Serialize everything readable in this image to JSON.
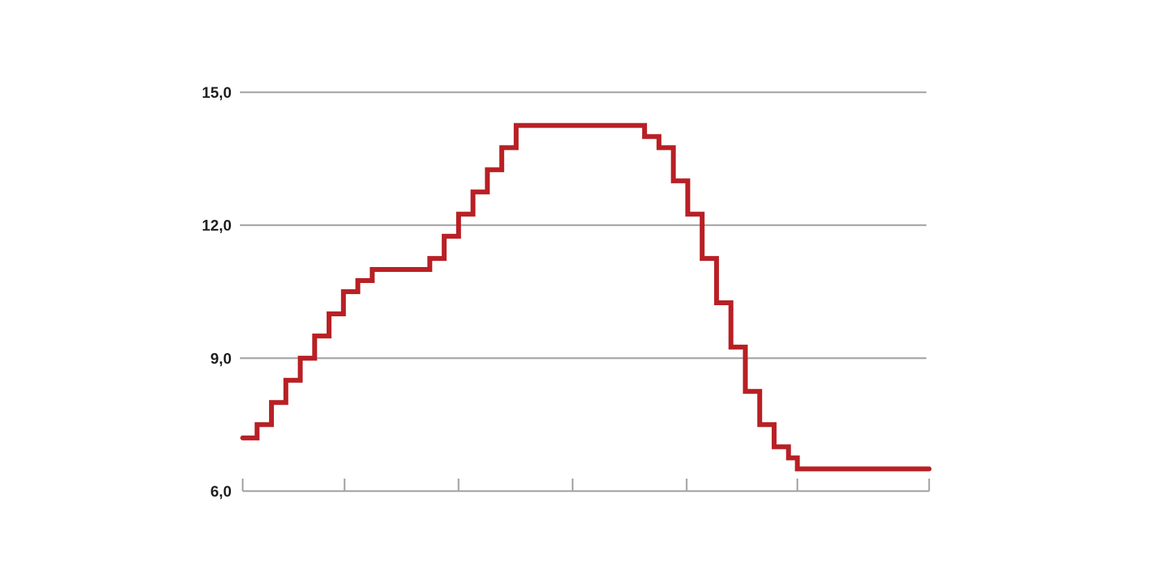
{
  "chart_data": {
    "type": "line",
    "step": true,
    "title": "",
    "xlabel": "",
    "ylabel": "",
    "ylim": [
      6,
      15
    ],
    "xlim": [
      0,
      62
    ],
    "yticks": [
      {
        "value": 6,
        "label": "6,0"
      },
      {
        "value": 9,
        "label": "9,0"
      },
      {
        "value": 12,
        "label": "12,0"
      },
      {
        "value": 15,
        "label": "15,0"
      }
    ],
    "xticks": [
      0,
      9.2,
      19.5,
      29.8,
      40.1,
      50.1,
      62
    ],
    "grid": true,
    "series": [
      {
        "color": "#b82025",
        "points": [
          [
            0,
            7.2
          ],
          [
            1.3,
            7.5
          ],
          [
            2.6,
            8.0
          ],
          [
            3.9,
            8.5
          ],
          [
            5.2,
            9.0
          ],
          [
            6.5,
            9.5
          ],
          [
            7.8,
            10.0
          ],
          [
            9.1,
            10.5
          ],
          [
            10.4,
            10.75
          ],
          [
            11.7,
            11.0
          ],
          [
            16.9,
            11.25
          ],
          [
            18.2,
            11.75
          ],
          [
            19.5,
            12.25
          ],
          [
            20.8,
            12.75
          ],
          [
            22.1,
            13.25
          ],
          [
            23.4,
            13.75
          ],
          [
            24.7,
            14.25
          ],
          [
            36.3,
            14.0
          ],
          [
            37.6,
            13.75
          ],
          [
            38.9,
            13.0
          ],
          [
            40.2,
            12.25
          ],
          [
            41.5,
            11.25
          ],
          [
            42.8,
            10.25
          ],
          [
            44.1,
            9.25
          ],
          [
            45.4,
            8.25
          ],
          [
            46.7,
            7.5
          ],
          [
            48.0,
            7.0
          ],
          [
            49.3,
            6.75
          ],
          [
            50.1,
            6.5
          ],
          [
            62.0,
            6.5
          ]
        ]
      }
    ]
  }
}
